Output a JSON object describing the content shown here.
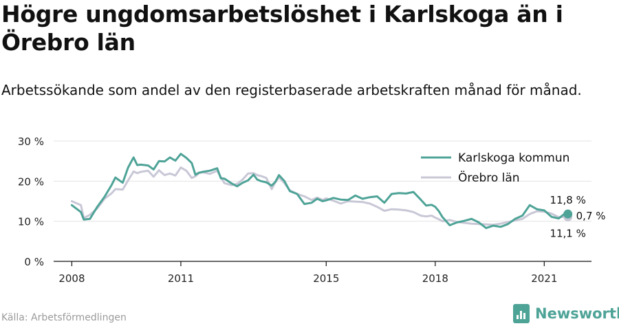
{
  "title": "Högre ungdomsarbetslöshet i Karlskoga än i Örebro län",
  "subtitle": "Arbetssökande som andel av den registerbaserade arbetskraften månad för månad.",
  "source": "Källa: Arbetsförmedlingen",
  "brand": "Newsworthy",
  "colors": {
    "karlskoga": "#4ea397",
    "orebro": "#c8c7d6",
    "grid": "#e3e3e3",
    "axis": "#111111",
    "brand": "#4ea397"
  },
  "chart_data": {
    "type": "line",
    "ylim": [
      0,
      30
    ],
    "xlim": [
      2007.5,
      2022.3
    ],
    "y_ticks": [
      0,
      10,
      20,
      30
    ],
    "y_tick_labels": [
      "0 %",
      "10 %",
      "20 %",
      "30 %"
    ],
    "x_ticks": [
      2008,
      2011,
      2015,
      2018,
      2021
    ],
    "x_tick_labels": [
      "2008",
      "2011",
      "2015",
      "2018",
      "2021"
    ],
    "grid": true,
    "legend_position": "top-right",
    "series": [
      {
        "name": "Karlskoga kommun",
        "color": "#4ea397",
        "x": [
          2008.0,
          2008.25,
          2008.33,
          2008.5,
          2008.7,
          2008.9,
          2009.1,
          2009.2,
          2009.4,
          2009.55,
          2009.7,
          2009.8,
          2009.9,
          2010.1,
          2010.25,
          2010.4,
          2010.55,
          2010.7,
          2010.85,
          2011.0,
          2011.15,
          2011.3,
          2011.4,
          2011.5,
          2011.6,
          2011.8,
          2012.0,
          2012.1,
          2012.2,
          2012.4,
          2012.55,
          2012.7,
          2012.85,
          2013.0,
          2013.1,
          2013.2,
          2013.35,
          2013.5,
          2013.6,
          2013.7,
          2013.85,
          2014.0,
          2014.2,
          2014.4,
          2014.6,
          2014.75,
          2014.9,
          2015.0,
          2015.2,
          2015.4,
          2015.6,
          2015.8,
          2016.0,
          2016.2,
          2016.4,
          2016.6,
          2016.8,
          2017.0,
          2017.2,
          2017.4,
          2017.6,
          2017.75,
          2017.9,
          2018.0,
          2018.1,
          2018.2,
          2018.4,
          2018.6,
          2018.8,
          2019.0,
          2019.2,
          2019.4,
          2019.6,
          2019.8,
          2020.0,
          2020.2,
          2020.4,
          2020.6,
          2020.8,
          2021.0,
          2021.2,
          2021.4,
          2021.55,
          2021.65
        ],
        "values": [
          14.0,
          12.3,
          10.4,
          10.6,
          13.6,
          16.1,
          19.1,
          20.9,
          19.6,
          23.4,
          25.9,
          24.0,
          24.1,
          23.9,
          22.9,
          25.0,
          24.9,
          25.9,
          25.1,
          26.8,
          25.8,
          24.5,
          21.6,
          22.1,
          22.3,
          22.6,
          23.2,
          20.7,
          20.6,
          19.4,
          18.7,
          19.6,
          20.2,
          21.6,
          20.4,
          20.0,
          19.7,
          18.9,
          19.8,
          21.5,
          20.0,
          17.5,
          16.8,
          14.3,
          14.6,
          15.6,
          15.0,
          15.2,
          15.8,
          15.4,
          15.3,
          16.4,
          15.6,
          16.0,
          16.2,
          14.6,
          16.8,
          17.0,
          16.9,
          17.3,
          15.4,
          13.9,
          14.1,
          13.6,
          12.5,
          11.0,
          9.0,
          9.7,
          10.1,
          10.6,
          9.7,
          8.3,
          8.9,
          8.6,
          9.3,
          10.6,
          11.4,
          14.0,
          13.0,
          12.7,
          11.1,
          10.7,
          11.8,
          11.8
        ]
      },
      {
        "name": "Örebro län",
        "color": "#c8c7d6",
        "x": [
          2008.0,
          2008.25,
          2008.33,
          2008.5,
          2008.7,
          2008.9,
          2009.1,
          2009.2,
          2009.4,
          2009.55,
          2009.7,
          2009.8,
          2009.9,
          2010.1,
          2010.25,
          2010.4,
          2010.55,
          2010.7,
          2010.85,
          2011.0,
          2011.15,
          2011.3,
          2011.4,
          2011.5,
          2011.6,
          2011.8,
          2012.0,
          2012.1,
          2012.2,
          2012.4,
          2012.55,
          2012.7,
          2012.85,
          2013.0,
          2013.1,
          2013.2,
          2013.35,
          2013.5,
          2013.6,
          2013.7,
          2013.85,
          2014.0,
          2014.2,
          2014.4,
          2014.6,
          2014.75,
          2014.9,
          2015.0,
          2015.2,
          2015.4,
          2015.6,
          2015.8,
          2016.0,
          2016.2,
          2016.4,
          2016.6,
          2016.8,
          2017.0,
          2017.2,
          2017.4,
          2017.6,
          2017.75,
          2017.9,
          2018.0,
          2018.1,
          2018.2,
          2018.4,
          2018.6,
          2018.8,
          2019.0,
          2019.2,
          2019.4,
          2019.6,
          2019.8,
          2020.0,
          2020.2,
          2020.4,
          2020.6,
          2020.8,
          2021.0,
          2021.2,
          2021.4,
          2021.55,
          2021.65
        ],
        "values": [
          15.0,
          14.0,
          10.8,
          11.6,
          13.2,
          15.6,
          17.0,
          18.0,
          17.9,
          20.2,
          22.4,
          22.0,
          22.3,
          22.6,
          21.1,
          22.7,
          21.5,
          21.9,
          21.4,
          23.4,
          22.6,
          20.8,
          21.2,
          22.0,
          22.2,
          21.8,
          22.6,
          21.0,
          19.5,
          19.0,
          19.3,
          20.4,
          21.9,
          22.0,
          21.5,
          21.3,
          20.8,
          18.0,
          19.7,
          21.0,
          19.5,
          17.7,
          16.8,
          16.2,
          15.3,
          15.9,
          15.3,
          15.7,
          15.1,
          14.4,
          15.0,
          14.9,
          14.8,
          14.4,
          13.6,
          12.6,
          13.0,
          12.9,
          12.7,
          12.3,
          11.4,
          11.2,
          11.4,
          10.9,
          10.5,
          10.0,
          10.3,
          9.8,
          9.6,
          9.4,
          9.3,
          9.2,
          9.1,
          9.4,
          9.8,
          10.2,
          10.6,
          11.8,
          12.5,
          12.4,
          11.9,
          11.0,
          11.1,
          11.1
        ]
      }
    ],
    "end_labels": {
      "karlskoga": "11,8 %",
      "orebro": "11,1 %",
      "difference": "0,7 %"
    }
  }
}
